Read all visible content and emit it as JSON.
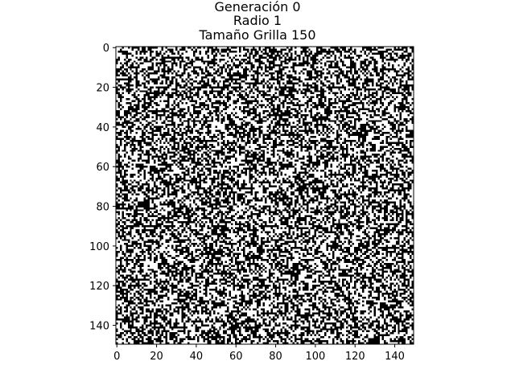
{
  "chart_data": {
    "type": "heatmap",
    "title_lines": [
      "Generación 0",
      "Radio 1",
      "Tamaño Grilla 150"
    ],
    "grid_size": 150,
    "colormap": {
      "alive": "#000000",
      "dead": "#ffffff"
    },
    "cell_values": "binary 0/1 random initial state (approx. 50% alive); individual cells not legible",
    "x_ticks": [
      0,
      20,
      40,
      60,
      80,
      100,
      120,
      140
    ],
    "y_ticks": [
      0,
      20,
      40,
      60,
      80,
      100,
      120,
      140
    ],
    "xlim": [
      0,
      150
    ],
    "ylim": [
      150,
      0
    ],
    "xlabel": "",
    "ylabel": "",
    "grid": false,
    "legend": "none"
  }
}
